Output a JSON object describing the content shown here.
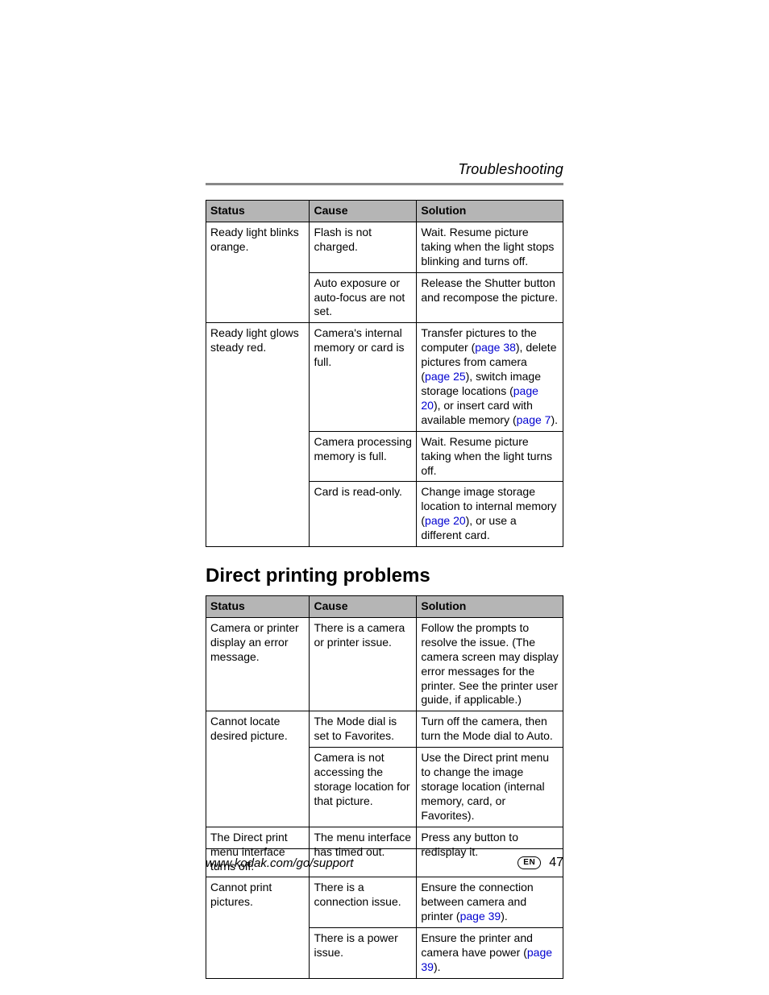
{
  "header": {
    "section": "Troubleshooting"
  },
  "table1": {
    "columns": [
      "Status",
      "Cause",
      "Solution"
    ],
    "col_widths_pct": [
      29,
      30,
      41
    ],
    "header_bg": "#b5b5b5",
    "border_color": "#000000",
    "font_size_pt": 10,
    "rows": [
      {
        "status": "Ready light blinks orange.",
        "status_rowspan": 2,
        "cause": "Flash is not charged.",
        "solution_parts": [
          {
            "t": "Wait. Resume picture taking when the light stops blinking and turns off."
          }
        ]
      },
      {
        "cause": "Auto exposure or auto-focus are not set.",
        "solution_parts": [
          {
            "t": "Release the Shutter button and recompose the picture."
          }
        ]
      },
      {
        "status": "Ready light glows steady red.",
        "status_rowspan": 3,
        "cause": "Camera's internal memory or card is full.",
        "solution_parts": [
          {
            "t": "Transfer pictures to the computer ("
          },
          {
            "t": "page 38",
            "link": true
          },
          {
            "t": "), delete pictures from camera ("
          },
          {
            "t": "page 25",
            "link": true
          },
          {
            "t": "), switch image storage locations ("
          },
          {
            "t": "page 20",
            "link": true
          },
          {
            "t": "), or insert card with available memory ("
          },
          {
            "t": "page 7",
            "link": true
          },
          {
            "t": ")."
          }
        ]
      },
      {
        "cause": "Camera processing memory is full.",
        "solution_parts": [
          {
            "t": "Wait. Resume picture taking when the light turns off."
          }
        ]
      },
      {
        "cause": "Card is read-only.",
        "solution_parts": [
          {
            "t": "Change image storage location to internal memory ("
          },
          {
            "t": "page 20",
            "link": true
          },
          {
            "t": "), or use a different card."
          }
        ]
      }
    ]
  },
  "heading2": "Direct printing problems",
  "table2": {
    "columns": [
      "Status",
      "Cause",
      "Solution"
    ],
    "col_widths_pct": [
      29,
      30,
      41
    ],
    "header_bg": "#b5b5b5",
    "border_color": "#000000",
    "font_size_pt": 10,
    "rows": [
      {
        "status": "Camera or printer display an error message.",
        "status_rowspan": 1,
        "cause": "There is a camera or printer issue.",
        "solution_parts": [
          {
            "t": "Follow the prompts to resolve the issue. (The camera screen may display error messages for the printer. See the printer user guide, if applicable.)"
          }
        ]
      },
      {
        "status": "Cannot locate desired picture.",
        "status_rowspan": 2,
        "cause": "The Mode dial is set to Favorites.",
        "solution_parts": [
          {
            "t": "Turn off the camera, then turn the Mode dial to Auto."
          }
        ]
      },
      {
        "cause": "Camera is not accessing the storage location for that picture.",
        "solution_parts": [
          {
            "t": "Use the Direct print menu to change the image storage location (internal memory, card, or Favorites)."
          }
        ]
      },
      {
        "status": "The Direct print menu interface turns off.",
        "status_rowspan": 1,
        "cause": "The menu interface has timed out.",
        "solution_parts": [
          {
            "t": "Press any button to redisplay it."
          }
        ]
      },
      {
        "status": "Cannot print pictures.",
        "status_rowspan": 2,
        "cause": "There is a connection issue.",
        "solution_parts": [
          {
            "t": "Ensure the connection between camera and printer ("
          },
          {
            "t": "page 39",
            "link": true
          },
          {
            "t": ")."
          }
        ]
      },
      {
        "cause": "There is a power issue.",
        "solution_parts": [
          {
            "t": "Ensure the printer and camera have power ("
          },
          {
            "t": "page 39",
            "link": true
          },
          {
            "t": ")."
          }
        ]
      }
    ]
  },
  "footer": {
    "url": "www.kodak.com/go/support",
    "lang": "EN",
    "page": "47"
  },
  "colors": {
    "link": "#0000d0",
    "header_rule": "#888888",
    "text": "#000000",
    "background": "#ffffff"
  },
  "typography": {
    "body_font": "Helvetica/Arial sans-serif",
    "section_header_italic": true,
    "section_header_size_pt": 13,
    "h2_size_pt": 18,
    "h2_weight": "bold",
    "table_font_size_pt": 10,
    "footer_url_italic": true
  }
}
